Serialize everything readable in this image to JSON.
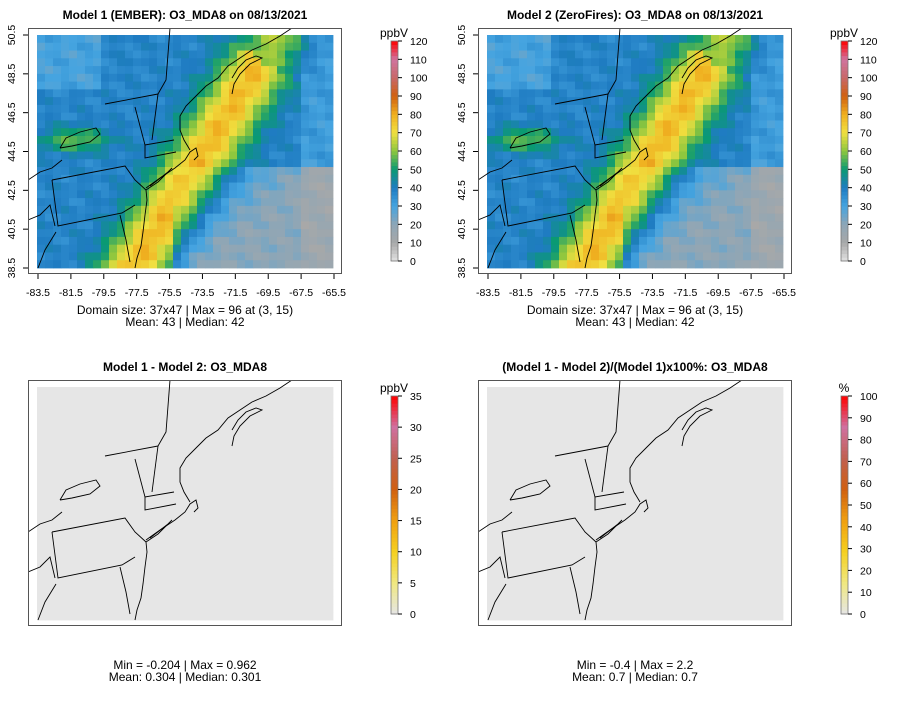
{
  "chart_data": [
    {
      "type": "heatmap",
      "title": "Model 1 (EMBER): O3_MDA8 on 08/13/2021",
      "legend_title": "ppbV",
      "legend_ticks": [
        "0",
        "10",
        "20",
        "30",
        "40",
        "50",
        "60",
        "70",
        "80",
        "90",
        "100",
        "110",
        "120"
      ],
      "clim": [
        0,
        120
      ],
      "x_ticks": [
        "-83.5",
        "-81.5",
        "-79.5",
        "-77.5",
        "-75.5",
        "-73.5",
        "-71.5",
        "-69.5",
        "-67.5",
        "-65.5"
      ],
      "y_ticks": [
        "38.5",
        "40.5",
        "42.5",
        "44.5",
        "46.5",
        "48.5",
        "50.5"
      ],
      "stats_line1": "Domain size: 37x47 | Max = 96 at (3, 15)",
      "stats_line2": "Mean: 43 |  Median: 42",
      "palette": "ozone"
    },
    {
      "type": "heatmap",
      "title": "Model 2 (ZeroFires): O3_MDA8 on 08/13/2021",
      "legend_title": "ppbV",
      "legend_ticks": [
        "0",
        "10",
        "20",
        "30",
        "40",
        "50",
        "60",
        "70",
        "80",
        "90",
        "100",
        "110",
        "120"
      ],
      "clim": [
        0,
        120
      ],
      "x_ticks": [
        "-83.5",
        "-81.5",
        "-79.5",
        "-77.5",
        "-75.5",
        "-73.5",
        "-71.5",
        "-69.5",
        "-67.5",
        "-65.5"
      ],
      "y_ticks": [
        "38.5",
        "40.5",
        "42.5",
        "44.5",
        "46.5",
        "48.5",
        "50.5"
      ],
      "stats_line1": "Domain size: 37x47 | Max = 96 at (3, 15)",
      "stats_line2": "Mean: 43 |  Median: 42",
      "palette": "ozone"
    },
    {
      "type": "heatmap",
      "title": "Model 1 - Model 2: O3_MDA8",
      "legend_title": "ppbV",
      "legend_ticks": [
        "0",
        "5",
        "10",
        "15",
        "20",
        "25",
        "30",
        "35"
      ],
      "clim": [
        0,
        35
      ],
      "x_ticks": [],
      "y_ticks": [],
      "stats_line1": "Min = -0.204 | Max = 0.962",
      "stats_line2": "Mean: 0.304 |  Median: 0.301",
      "palette": "diff"
    },
    {
      "type": "heatmap",
      "title": "(Model 1 - Model 2)/(Model 1)x100%: O3_MDA8",
      "legend_title": "%",
      "legend_ticks": [
        "0",
        "10",
        "20",
        "30",
        "40",
        "50",
        "60",
        "70",
        "80",
        "90",
        "100"
      ],
      "clim": [
        0,
        100
      ],
      "x_ticks": [],
      "y_ticks": [],
      "stats_line1": "Min = -0.4 | Max = 2.2",
      "stats_line2": "Mean: 0.7 |  Median: 0.7",
      "palette": "diff"
    }
  ],
  "palettes": {
    "ozone": [
      "#e2e2e2",
      "#a8a8a8",
      "#8ea6b6",
      "#45a4e0",
      "#1f7cc2",
      "#0a9a72",
      "#8cc63e",
      "#f0e040",
      "#f0b020",
      "#d06010",
      "#c86868",
      "#d074a0",
      "#ff0000"
    ],
    "diff": [
      "#e5e5e5",
      "#f0e880",
      "#f5d020",
      "#f0a010",
      "#d06010",
      "#c06050",
      "#d070a0",
      "#ff0000"
    ]
  }
}
